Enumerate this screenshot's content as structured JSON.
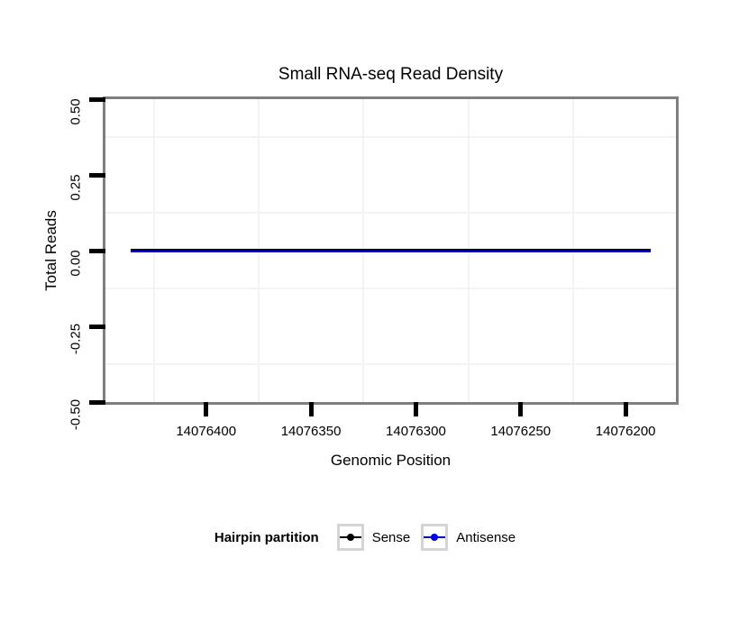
{
  "chart_data": {
    "type": "line",
    "title": "Small RNA-seq Read Density",
    "xlabel": "Genomic Position",
    "ylabel": "Total Reads",
    "x_ticks": [
      14076400,
      14076350,
      14076300,
      14076250,
      14076200
    ],
    "x_tick_labels": [
      "14076400",
      "14076350",
      "14076300",
      "14076250",
      "14076200"
    ],
    "y_ticks": [
      0.5,
      0.25,
      0,
      -0.25,
      -0.5
    ],
    "y_tick_labels": [
      "0.50",
      "0.25",
      "0.00",
      "-0.25",
      "-0.50"
    ],
    "xlim": [
      14076448,
      14076176
    ],
    "x_axis_reversed": true,
    "ylim": [
      -0.5,
      0.5
    ],
    "grid": "minor-only",
    "grid_minor_color": "#F3F3F3",
    "panel_border_color": "#7F7F7F",
    "legend_key_border_color": "#D5D5D5",
    "legend_position": "bottom",
    "legend_title": "Hairpin partition",
    "series": [
      {
        "name": "Sense",
        "color": "#000000",
        "x": [
          14076436,
          14076188
        ],
        "y": [
          0,
          0
        ]
      },
      {
        "name": "Antisense",
        "color": "#0000EE",
        "x": [
          14076436,
          14076188
        ],
        "y": [
          0,
          0
        ]
      }
    ]
  }
}
